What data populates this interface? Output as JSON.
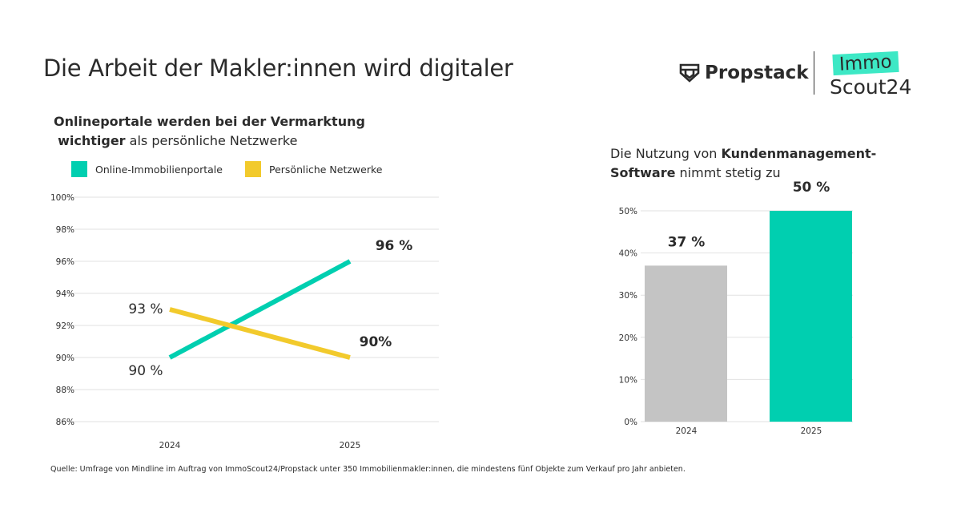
{
  "title": "Die Arbeit der Makler:innen wird digitaler",
  "logos": {
    "propstack": "Propstack",
    "immo": "Immo",
    "scout": "Scout24"
  },
  "source": "Quelle: Umfrage von Mindline im Auftrag von ImmoScout24/Propstack unter 350 Immobilienmakler:innen, die mindestens fünf Objekte zum Verkauf pro Jahr anbieten.",
  "colors": {
    "teal": "#00CFB0",
    "yellow": "#F2CA2C",
    "gray": "#C4C4C4",
    "text": "#2b2b2b"
  },
  "chart_data": [
    {
      "type": "line",
      "subtitle": {
        "line1": "Onlineportale werden bei der Vermarktung",
        "bold2": "wichtiger",
        "rest2": " als persönliche Netzwerke"
      },
      "categories": [
        "2024",
        "2025"
      ],
      "ylim": [
        86,
        100
      ],
      "yticks": [
        "86%",
        "88%",
        "90%",
        "92%",
        "94%",
        "96%",
        "98%",
        "100%"
      ],
      "grid": true,
      "legend": "top-left",
      "series": [
        {
          "name": "Online-Immobilienportale",
          "values": [
            90,
            96
          ],
          "labels": [
            "90 %",
            "96 %"
          ],
          "color": "#00CFB0"
        },
        {
          "name": "Persönliche Netzwerke",
          "values": [
            93,
            90
          ],
          "labels": [
            "93 %",
            "90%"
          ],
          "color": "#F2CA2C"
        }
      ]
    },
    {
      "type": "bar",
      "subtitle": {
        "pre": "Die Nutzung von ",
        "bold": "Kundenmanagement-",
        "bold2": "Software",
        "post": " nimmt stetig zu"
      },
      "categories": [
        "2024",
        "2025"
      ],
      "values": [
        37,
        50
      ],
      "labels": [
        "37 %",
        "50 %"
      ],
      "colors": [
        "#C4C4C4",
        "#00CFB0"
      ],
      "ylim": [
        0,
        50
      ],
      "yticks": [
        "0%",
        "10%",
        "20%",
        "30%",
        "40%",
        "50%"
      ],
      "grid": true
    }
  ]
}
